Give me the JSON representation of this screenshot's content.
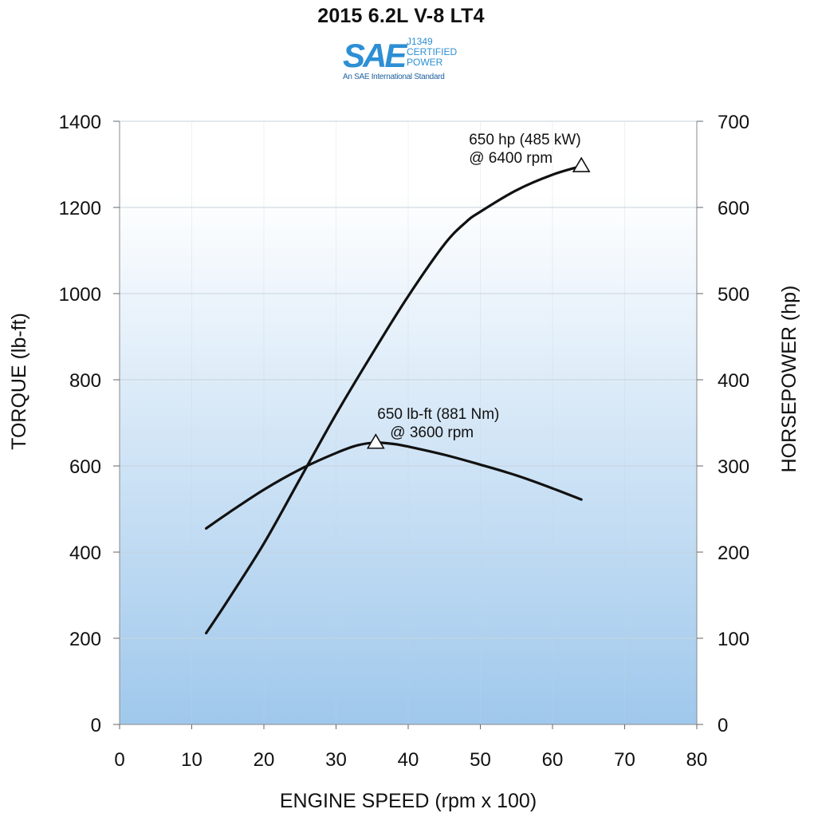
{
  "badge": {
    "logo_text": "SAE",
    "line1": "J1349",
    "line2": "CERTIFIED",
    "line3": "POWER",
    "tagline": "An SAE International Standard"
  },
  "colors": {
    "bg_top": "#ffffff",
    "bg_bottom": "#9fc8ec",
    "curve": "#111111",
    "grid": "#c7d3de",
    "logo_blue": "#2d8fd4",
    "logo_dark": "#1d5f9e"
  },
  "chart_data": {
    "type": "line",
    "title": "2015 6.2L V-8 LT4",
    "xlabel": "ENGINE SPEED (rpm x 100)",
    "ylabel": "TORQUE (lb-ft)",
    "y2label": "HORSEPOWER (hp)",
    "xlim": [
      0,
      80
    ],
    "ylim": [
      0,
      1400
    ],
    "y2lim": [
      0,
      700
    ],
    "x_ticks": [
      0,
      10,
      20,
      30,
      40,
      50,
      60,
      70,
      80
    ],
    "y_ticks": [
      0,
      200,
      400,
      600,
      800,
      1000,
      1200,
      1400
    ],
    "y2_ticks": [
      0,
      100,
      200,
      300,
      400,
      500,
      600,
      700
    ],
    "grid": true,
    "series": [
      {
        "key": "torque",
        "axis": "left",
        "x": [
          12,
          15,
          20,
          25,
          30,
          33,
          35.5,
          38,
          40,
          45,
          50,
          55,
          60,
          64
        ],
        "values": [
          455,
          490,
          545,
          592,
          630,
          648,
          654,
          651,
          645,
          626,
          603,
          578,
          548,
          522
        ]
      },
      {
        "key": "horsepower",
        "axis": "right",
        "x": [
          12,
          15,
          20,
          25,
          30,
          35,
          40,
          45,
          48,
          50,
          55,
          60,
          64
        ],
        "values": [
          106,
          144,
          210,
          285,
          360,
          430,
          497,
          557,
          583,
          595,
          620,
          638,
          648
        ]
      }
    ],
    "annotations": [
      {
        "key": "hp_peak",
        "axis": "right",
        "x": 64.0,
        "y": 649,
        "line1": "650 hp (485 kW)",
        "line2": "@ 6400 rpm"
      },
      {
        "key": "tq_peak",
        "axis": "left",
        "x": 35.5,
        "y": 656,
        "line1": "650 lb-ft (881 Nm)",
        "line2": "@ 3600 rpm"
      }
    ]
  }
}
